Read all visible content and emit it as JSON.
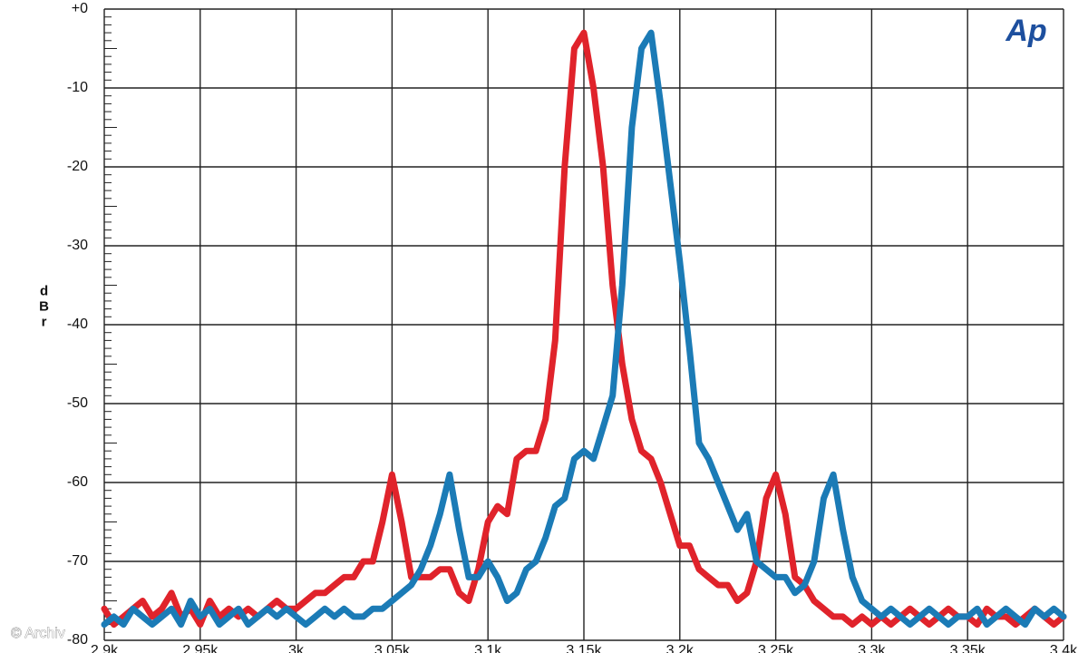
{
  "chart_data": {
    "type": "line",
    "y_label": "dBr",
    "logo": "Ap",
    "watermark": "© Archiv",
    "x": [
      2900,
      2905,
      2910,
      2915,
      2920,
      2925,
      2930,
      2935,
      2940,
      2945,
      2950,
      2955,
      2960,
      2965,
      2970,
      2975,
      2980,
      2985,
      2990,
      2995,
      3000,
      3005,
      3010,
      3015,
      3020,
      3025,
      3030,
      3035,
      3040,
      3045,
      3050,
      3055,
      3060,
      3065,
      3070,
      3075,
      3080,
      3085,
      3090,
      3095,
      3100,
      3105,
      3110,
      3115,
      3120,
      3125,
      3130,
      3135,
      3140,
      3145,
      3150,
      3155,
      3160,
      3165,
      3170,
      3175,
      3180,
      3185,
      3190,
      3195,
      3200,
      3205,
      3210,
      3215,
      3220,
      3225,
      3230,
      3235,
      3240,
      3245,
      3250,
      3255,
      3260,
      3265,
      3270,
      3275,
      3280,
      3285,
      3290,
      3295,
      3300,
      3305,
      3310,
      3315,
      3320,
      3325,
      3330,
      3335,
      3340,
      3345,
      3350,
      3355,
      3360,
      3365,
      3370,
      3375,
      3380,
      3385,
      3390,
      3395,
      3400
    ],
    "series": [
      {
        "color": "#e0232b",
        "values": [
          -76,
          -78,
          -77,
          -76,
          -75,
          -77,
          -76,
          -74,
          -77,
          -76,
          -78,
          -75,
          -77,
          -76,
          -77,
          -76,
          -77,
          -76,
          -75,
          -76,
          -76,
          -75,
          -74,
          -74,
          -73,
          -72,
          -72,
          -70,
          -70,
          -65,
          -59,
          -65,
          -72,
          -72,
          -72,
          -71,
          -71,
          -74,
          -75,
          -71,
          -65,
          -63,
          -64,
          -57,
          -56,
          -56,
          -52,
          -42,
          -20,
          -5,
          -3,
          -10,
          -20,
          -35,
          -45,
          -52,
          -56,
          -57,
          -60,
          -64,
          -68,
          -68,
          -71,
          -72,
          -73,
          -73,
          -75,
          -74,
          -70,
          -62,
          -59,
          -64,
          -72,
          -73,
          -75,
          -76,
          -77,
          -77,
          -78,
          -77,
          -78,
          -77,
          -78,
          -77,
          -76,
          -77,
          -78,
          -77,
          -76,
          -77,
          -77,
          -78,
          -76,
          -77,
          -77,
          -78,
          -77,
          -76,
          -77,
          -78,
          -77
        ]
      },
      {
        "color": "#1b7bb6",
        "values": [
          -78,
          -77,
          -78,
          -76,
          -77,
          -78,
          -77,
          -76,
          -78,
          -75,
          -77,
          -76,
          -78,
          -77,
          -76,
          -78,
          -77,
          -76,
          -77,
          -76,
          -77,
          -78,
          -77,
          -76,
          -77,
          -76,
          -77,
          -77,
          -76,
          -76,
          -75,
          -74,
          -73,
          -71,
          -68,
          -64,
          -59,
          -66,
          -72,
          -72,
          -70,
          -72,
          -75,
          -74,
          -71,
          -70,
          -67,
          -63,
          -62,
          -57,
          -56,
          -57,
          -53,
          -49,
          -35,
          -15,
          -5,
          -3,
          -12,
          -22,
          -32,
          -43,
          -55,
          -57,
          -60,
          -63,
          -66,
          -64,
          -70,
          -71,
          -72,
          -72,
          -74,
          -73,
          -70,
          -62,
          -59,
          -66,
          -72,
          -75,
          -76,
          -77,
          -76,
          -77,
          -78,
          -77,
          -76,
          -77,
          -78,
          -77,
          -77,
          -76,
          -78,
          -77,
          -76,
          -77,
          -78,
          -76,
          -77,
          -76,
          -77
        ]
      }
    ],
    "xlim": [
      2900,
      3400
    ],
    "xticks": [
      {
        "value": 2900,
        "label": "2.9k"
      },
      {
        "value": 2950,
        "label": "2.95k"
      },
      {
        "value": 3000,
        "label": "3k"
      },
      {
        "value": 3050,
        "label": "3.05k"
      },
      {
        "value": 3100,
        "label": "3.1k"
      },
      {
        "value": 3150,
        "label": "3.15k"
      },
      {
        "value": 3200,
        "label": "3.2k"
      },
      {
        "value": 3250,
        "label": "3.25k"
      },
      {
        "value": 3300,
        "label": "3.3k"
      },
      {
        "value": 3350,
        "label": "3.35k"
      },
      {
        "value": 3400,
        "label": "3.4k"
      }
    ],
    "ylim": [
      -80,
      0
    ],
    "yticks": [
      {
        "value": 0,
        "label": "+0"
      },
      -10,
      -20,
      -30,
      -40,
      -50,
      -60,
      -70,
      -80
    ],
    "grid": true
  }
}
